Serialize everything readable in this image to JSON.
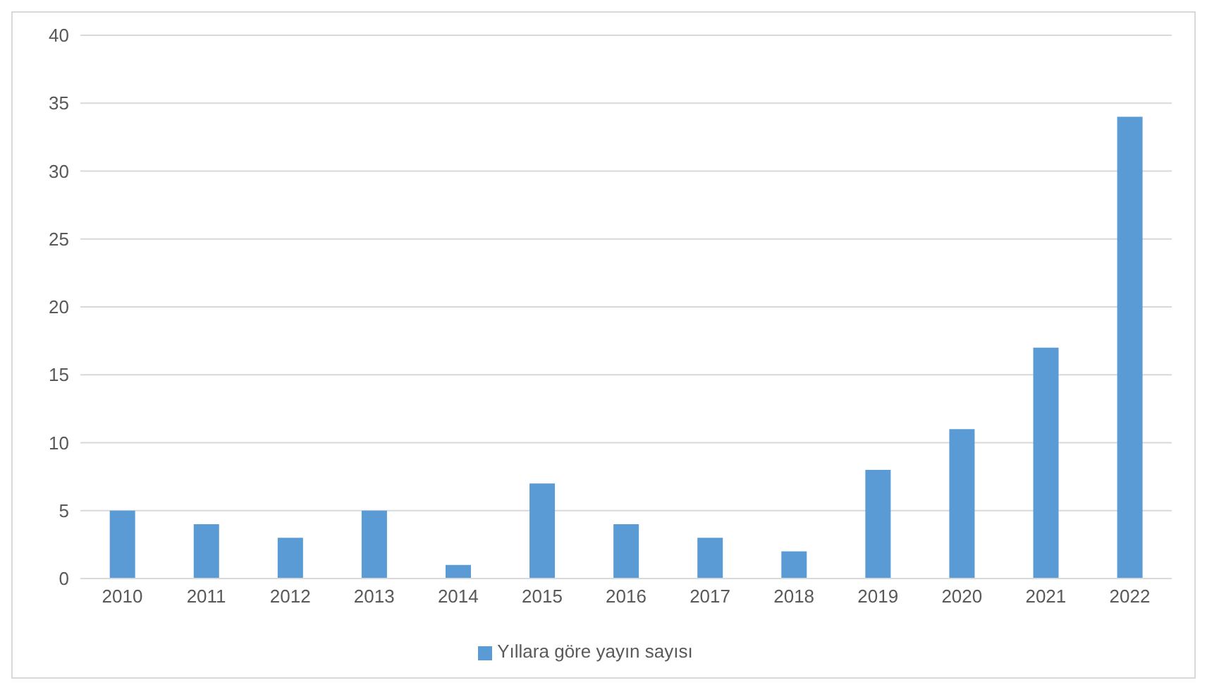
{
  "chart_data": {
    "type": "bar",
    "categories": [
      "2010",
      "2011",
      "2012",
      "2013",
      "2014",
      "2015",
      "2016",
      "2017",
      "2018",
      "2019",
      "2020",
      "2021",
      "2022"
    ],
    "series": [
      {
        "name": "Yıllara göre yayın sayısı",
        "color": "#5b9bd5",
        "values": [
          5,
          4,
          3,
          5,
          1,
          7,
          4,
          3,
          2,
          8,
          11,
          17,
          34
        ]
      }
    ],
    "ylim": [
      0,
      40
    ],
    "yticks": [
      0,
      5,
      10,
      15,
      20,
      25,
      30,
      35,
      40
    ],
    "grid": "y",
    "legend": "bottom"
  }
}
